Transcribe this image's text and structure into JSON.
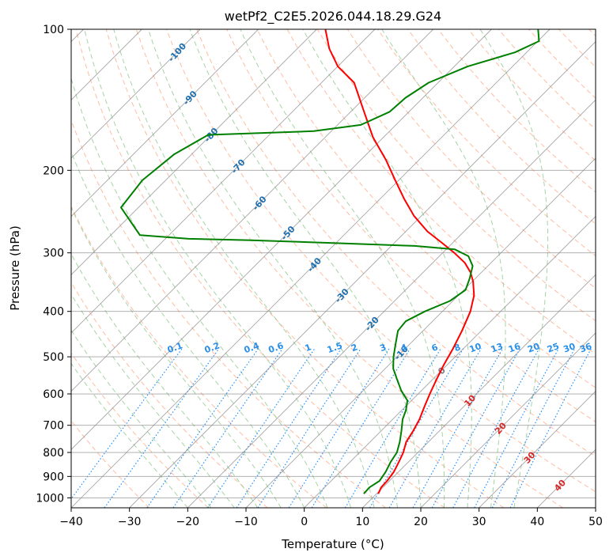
{
  "chart_data": {
    "type": "line",
    "subtype": "skew-t log-p diagram",
    "title": "wetPf2_C2E5.2026.044.18.29.G24",
    "xlabel": "Temperature (°C)",
    "ylabel": "Pressure (hPa)",
    "xlim": [
      -40,
      50
    ],
    "ylim": [
      1050,
      100
    ],
    "y_scale": "log",
    "x_ticks": [
      "−40",
      "−30",
      "−20",
      "−10",
      "0",
      "10",
      "20",
      "30",
      "40",
      "50"
    ],
    "x_tick_values": [
      -40,
      -30,
      -20,
      -10,
      0,
      10,
      20,
      30,
      40,
      50
    ],
    "y_ticks": [
      "100",
      "200",
      "300",
      "400",
      "500",
      "600",
      "700",
      "800",
      "900",
      "1000"
    ],
    "y_tick_values": [
      100,
      200,
      300,
      400,
      500,
      600,
      700,
      800,
      900,
      1000
    ],
    "grid": true,
    "series": [
      {
        "color": "#ff0000",
        "points": [
          {
            "p": 980,
            "t": 10.3
          },
          {
            "p": 950,
            "t": 9.7
          },
          {
            "p": 920,
            "t": 9.6
          },
          {
            "p": 880,
            "t": 9.2
          },
          {
            "p": 840,
            "t": 8.4
          },
          {
            "p": 800,
            "t": 7.5
          },
          {
            "p": 760,
            "t": 6.2
          },
          {
            "p": 720,
            "t": 5.5
          },
          {
            "p": 680,
            "t": 4.6
          },
          {
            "p": 640,
            "t": 3.3
          },
          {
            "p": 600,
            "t": 2.0
          },
          {
            "p": 560,
            "t": 0.7
          },
          {
            "p": 520,
            "t": -0.6
          },
          {
            "p": 480,
            "t": -1.8
          },
          {
            "p": 440,
            "t": -3.3
          },
          {
            "p": 400,
            "t": -5.2
          },
          {
            "p": 370,
            "t": -7.3
          },
          {
            "p": 345,
            "t": -9.9
          },
          {
            "p": 330,
            "t": -11.9
          },
          {
            "p": 315,
            "t": -14.5
          },
          {
            "p": 300,
            "t": -18.0
          },
          {
            "p": 285,
            "t": -22.0
          },
          {
            "p": 270,
            "t": -26.3
          },
          {
            "p": 250,
            "t": -31.3
          },
          {
            "p": 230,
            "t": -35.9
          },
          {
            "p": 210,
            "t": -40.6
          },
          {
            "p": 190,
            "t": -45.7
          },
          {
            "p": 170,
            "t": -51.8
          },
          {
            "p": 150,
            "t": -57.7
          },
          {
            "p": 130,
            "t": -64.4
          },
          {
            "p": 120,
            "t": -70.0
          },
          {
            "p": 110,
            "t": -74.5
          },
          {
            "p": 100,
            "t": -78.5
          }
        ]
      },
      {
        "color": "#008000",
        "points": [
          {
            "p": 980,
            "t": 7.8
          },
          {
            "p": 950,
            "t": 7.7
          },
          {
            "p": 920,
            "t": 8.3
          },
          {
            "p": 880,
            "t": 7.8
          },
          {
            "p": 840,
            "t": 7.0
          },
          {
            "p": 800,
            "t": 6.4
          },
          {
            "p": 760,
            "t": 5.1
          },
          {
            "p": 720,
            "t": 3.5
          },
          {
            "p": 680,
            "t": 1.7
          },
          {
            "p": 650,
            "t": 0.7
          },
          {
            "p": 620,
            "t": -0.7
          },
          {
            "p": 590,
            "t": -3.5
          },
          {
            "p": 560,
            "t": -6.0
          },
          {
            "p": 530,
            "t": -8.6
          },
          {
            "p": 500,
            "t": -10.6
          },
          {
            "p": 470,
            "t": -12.4
          },
          {
            "p": 440,
            "t": -14.3
          },
          {
            "p": 420,
            "t": -14.6
          },
          {
            "p": 400,
            "t": -13.0
          },
          {
            "p": 380,
            "t": -10.5
          },
          {
            "p": 360,
            "t": -9.7
          },
          {
            "p": 340,
            "t": -11.0
          },
          {
            "p": 320,
            "t": -12.6
          },
          {
            "p": 305,
            "t": -15.0
          },
          {
            "p": 295,
            "t": -18.5
          },
          {
            "p": 290,
            "t": -26.0
          },
          {
            "p": 286,
            "t": -40.0
          },
          {
            "p": 282,
            "t": -55.0
          },
          {
            "p": 280,
            "t": -66.0
          },
          {
            "p": 275,
            "t": -75.0
          },
          {
            "p": 240,
            "t": -83.0
          },
          {
            "p": 210,
            "t": -84.0
          },
          {
            "p": 185,
            "t": -83.0
          },
          {
            "p": 168,
            "t": -80.5
          },
          {
            "p": 165,
            "t": -63.0
          },
          {
            "p": 160,
            "t": -56.0
          },
          {
            "p": 150,
            "t": -53.3
          },
          {
            "p": 140,
            "t": -53.0
          },
          {
            "p": 130,
            "t": -51.6
          },
          {
            "p": 120,
            "t": -47.7
          },
          {
            "p": 112,
            "t": -42.0
          },
          {
            "p": 106,
            "t": -39.8
          },
          {
            "p": 100,
            "t": -42.0
          }
        ]
      }
    ],
    "background_lines": {
      "skew": 0.75,
      "dry_adiabat_color": "#ffa07a",
      "moist_adiabat_color": "#90c890",
      "mixing_ratio_color": "#1e90ff",
      "isotherm_color": "#888888",
      "isobar_color": "#888888",
      "zero_isotherm_color": "#d2b48c"
    },
    "isotherm_labels": [
      {
        "t": -100,
        "p": 112,
        "text": "-100"
      },
      {
        "t": -90,
        "p": 140,
        "text": "-90"
      },
      {
        "t": -80,
        "p": 168,
        "text": "-80"
      },
      {
        "t": -70,
        "p": 196,
        "text": "-70"
      },
      {
        "t": -60,
        "p": 235,
        "text": "-60"
      },
      {
        "t": -50,
        "p": 272,
        "text": "-50"
      },
      {
        "t": -40,
        "p": 318,
        "text": "-40"
      },
      {
        "t": -30,
        "p": 370,
        "text": "-30"
      },
      {
        "t": -20,
        "p": 425,
        "text": "-20"
      },
      {
        "t": -10,
        "p": 490,
        "text": "-10"
      },
      {
        "t": 0,
        "p": 535,
        "text": "0"
      },
      {
        "t": 10,
        "p": 620,
        "text": "10"
      },
      {
        "t": 20,
        "p": 710,
        "text": "20"
      },
      {
        "t": 30,
        "p": 820,
        "text": "30"
      },
      {
        "t": 40,
        "p": 940,
        "text": "40"
      }
    ],
    "mixing_ratio_labels": [
      "0.1",
      "0.2",
      "0.4",
      "0.6",
      "1",
      "1.5",
      "2",
      "3",
      "4",
      "6",
      "8",
      "10",
      "13",
      "16",
      "20",
      "25",
      "30",
      "36"
    ],
    "mixing_ratio_values": [
      0.1,
      0.2,
      0.4,
      0.6,
      1,
      1.5,
      2,
      3,
      4,
      6,
      8,
      10,
      13,
      16,
      20,
      25,
      30,
      36
    ]
  }
}
